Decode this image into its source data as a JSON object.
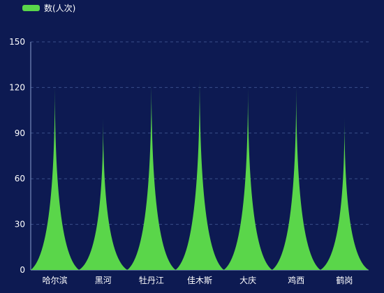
{
  "chart_data": {
    "type": "bar",
    "mark_style": "pictorial-spike",
    "categories": [
      "哈尔滨",
      "黑河",
      "牡丹江",
      "佳木斯",
      "大庆",
      "鸡西",
      "鹤岗"
    ],
    "series": [
      {
        "name": "数(人次)",
        "color": "#5ad64a",
        "values": [
          122,
          100,
          125,
          128,
          121,
          122,
          100
        ]
      }
    ],
    "yticks": [
      0,
      30,
      60,
      90,
      120,
      150
    ],
    "ylim": [
      0,
      150
    ],
    "grid": true,
    "legend": "top-left",
    "background": "#0d1a52",
    "grid_color": "#3a4f8a",
    "axis_color": "#8aa0d0"
  }
}
